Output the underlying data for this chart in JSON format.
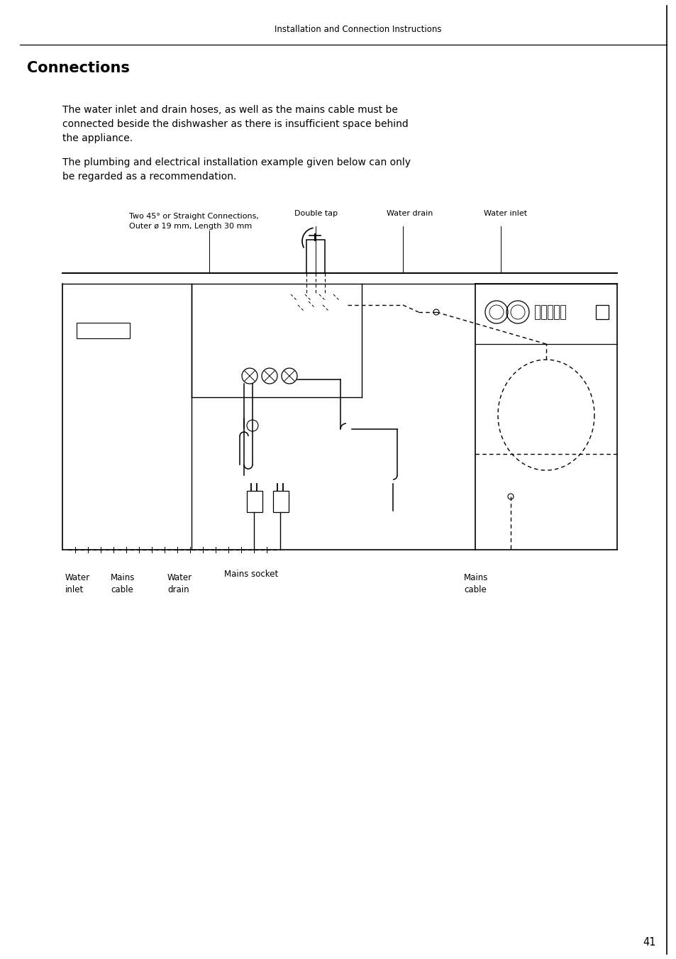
{
  "page_header": "Installation and Connection Instructions",
  "section_title": "Connections",
  "paragraph1": "The water inlet and drain hoses, as well as the mains cable must be\nconnected beside the dishwasher as there is insufficient space behind\nthe appliance.",
  "paragraph2": "The plumbing and electrical installation example given below can only\nbe regarded as a recommendation.",
  "label_top_left": "Two 45° or Straight Connections,\nOuter ø 19 mm, Length 30 mm",
  "label_double_tap": "Double tap",
  "label_water_drain_top": "Water drain",
  "label_water_inlet_top": "Water inlet",
  "label_water_inlet_bot": "Water\ninlet",
  "label_mains_cable_bot_left": "Mains\ncable",
  "label_water_drain_bot": "Water\ndrain",
  "label_mains_socket": "Mains socket",
  "label_mains_cable_bot_right": "Mains\ncable",
  "page_number": "41",
  "bg_color": "#ffffff",
  "text_color": "#000000",
  "line_color": "#000000"
}
